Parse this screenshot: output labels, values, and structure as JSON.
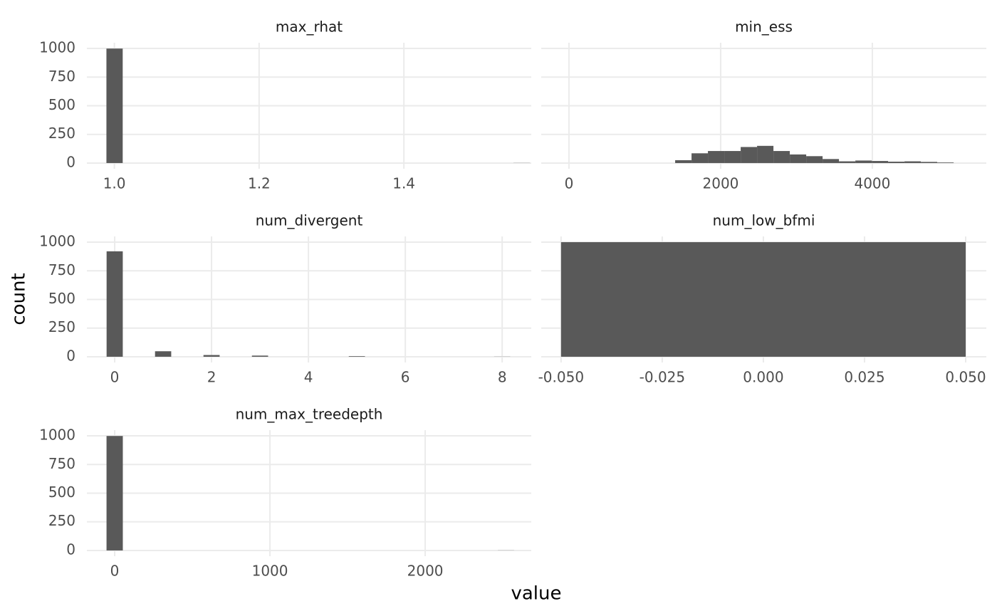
{
  "axis_labels": {
    "x": "value",
    "y": "count"
  },
  "chart_data": [
    {
      "type": "histogram",
      "title": "max_rhat",
      "color": "#595959",
      "grid": true,
      "bins": [
        0.989,
        1.0115,
        1.034,
        1.0565,
        1.079,
        1.1015,
        1.124,
        1.1465,
        1.169,
        1.1915,
        1.214,
        1.2365,
        1.259,
        1.2815,
        1.304,
        1.3265,
        1.349,
        1.3715,
        1.394,
        1.4165,
        1.439,
        1.4615,
        1.484,
        1.5065,
        1.529,
        1.5515,
        1.574
      ],
      "values": [
        999,
        0,
        0,
        0,
        0,
        0,
        0,
        0,
        0,
        0,
        0,
        0,
        0,
        0,
        0,
        0,
        0,
        0,
        0,
        0,
        0,
        0,
        0,
        0,
        0,
        1
      ],
      "xlim": [
        0.962,
        1.576
      ],
      "xticks": [
        {
          "value": 1,
          "label": "1.0"
        },
        1.2,
        1.4
      ],
      "ylim": [
        -50,
        1050
      ],
      "yticks": [
        0,
        250,
        500,
        750,
        1000
      ]
    },
    {
      "type": "histogram",
      "title": "min_ess",
      "color": "#595959",
      "grid": true,
      "bins": [
        1400,
        1616,
        1832,
        2048,
        2264,
        2480,
        2696,
        2912,
        3128,
        3344,
        3560,
        3776,
        3992,
        4208,
        4424,
        4640,
        4856,
        5072
      ],
      "values": [
        25,
        85,
        105,
        105,
        140,
        150,
        105,
        75,
        60,
        35,
        15,
        22,
        18,
        12,
        15,
        10,
        5
      ],
      "xlim": [
        -366,
        5503
      ],
      "xticks": [
        0,
        2000,
        4000
      ],
      "ylim": [
        -50,
        1050
      ],
      "yticks": [
        0,
        250,
        500,
        750,
        1000
      ]
    },
    {
      "type": "histogram",
      "title": "num_divergent",
      "color": "#595959",
      "grid": true,
      "bins": [
        -0.167,
        0.167,
        0.5,
        0.833,
        1.167,
        1.5,
        1.833,
        2.167,
        2.5,
        2.833,
        3.167,
        3.5,
        3.833,
        4.167,
        4.5,
        4.833,
        5.167,
        5.5,
        5.833,
        6.167,
        6.5,
        6.833,
        7.167,
        7.5,
        7.833,
        8.167,
        8.5
      ],
      "values": [
        920,
        0,
        0,
        48,
        0,
        0,
        15,
        0,
        0,
        10,
        0,
        0,
        0,
        0,
        0,
        5,
        0,
        0,
        0,
        0,
        0,
        0,
        0,
        0,
        1,
        0
      ],
      "xlim": [
        -0.574,
        8.6
      ],
      "xticks": [
        0,
        2,
        4,
        6,
        8
      ],
      "ylim": [
        -50,
        1050
      ],
      "yticks": [
        0,
        250,
        500,
        750,
        1000
      ]
    },
    {
      "type": "histogram",
      "title": "num_low_bfmi",
      "color": "#595959",
      "grid": true,
      "bins": [
        -0.05,
        0.05
      ],
      "values": [
        1000
      ],
      "xlim": [
        -0.0549,
        0.0551
      ],
      "xticks": [
        {
          "value": -0.05,
          "label": "-0.050"
        },
        {
          "value": -0.025,
          "label": "-0.025"
        },
        {
          "value": 0,
          "label": "0.000"
        },
        {
          "value": 0.025,
          "label": "0.025"
        },
        {
          "value": 0.05,
          "label": "0.050"
        }
      ],
      "ylim": [
        -50,
        1050
      ],
      "yticks": [
        0,
        250,
        500,
        750,
        1000
      ]
    },
    {
      "type": "histogram",
      "title": "num_max_treedepth",
      "color": "#595959",
      "grid": true,
      "bins": [
        -52.5,
        52.5,
        157.5,
        262.5,
        367.5,
        472.5,
        577.5,
        682.5,
        787.5,
        892.5,
        997.5,
        1102.5,
        1207.5,
        1312.5,
        1417.5,
        1522.5,
        1627.5,
        1732.5,
        1837.5,
        1942.5,
        2047.5,
        2152.5,
        2257.5,
        2362.5,
        2467.5,
        2572.5
      ],
      "values": [
        999,
        0,
        0,
        0,
        0,
        0,
        0,
        0,
        0,
        0,
        0,
        0,
        0,
        0,
        0,
        0,
        0,
        0,
        0,
        0,
        0,
        0,
        0,
        0,
        1
      ],
      "xlim": [
        -179,
        2683
      ],
      "xticks": [
        0,
        1000,
        2000
      ],
      "ylim": [
        -50,
        1050
      ],
      "yticks": [
        0,
        250,
        500,
        750,
        1000
      ]
    }
  ]
}
